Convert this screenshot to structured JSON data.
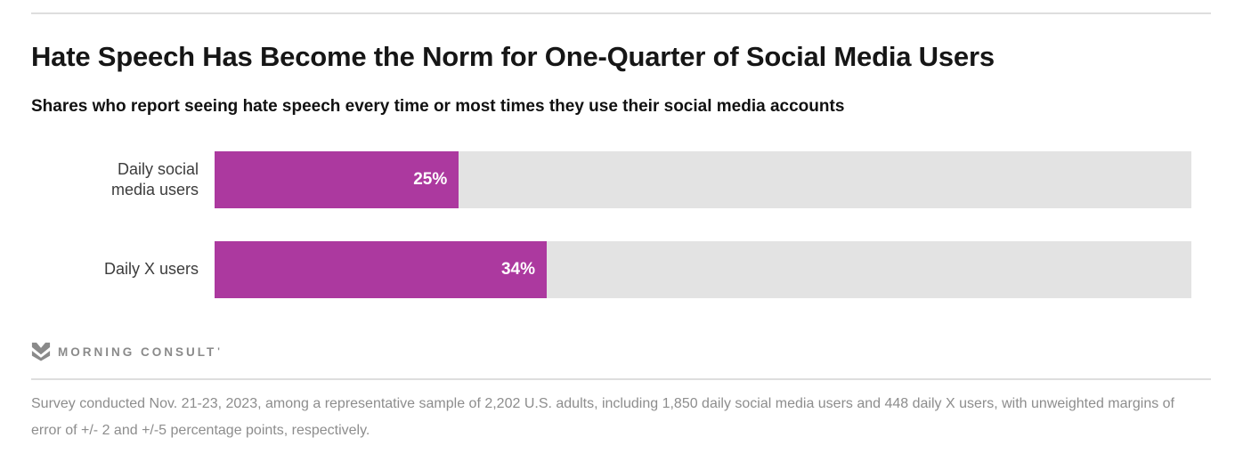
{
  "header": {
    "title": "Hate Speech Has Become the Norm for One-Quarter of Social Media Users",
    "subtitle": "Shares who report seeing hate speech every time or most times they use their social media accounts"
  },
  "chart_data": {
    "type": "bar",
    "orientation": "horizontal",
    "title": "Hate Speech Has Become the Norm for One-Quarter of Social Media Users",
    "subtitle": "Shares who report seeing hate speech every time or most times they use their social media accounts",
    "categories": [
      "Daily social media users",
      "Daily X users"
    ],
    "values": [
      25,
      34
    ],
    "value_labels": [
      "25%",
      "34%"
    ],
    "value_suffix": "%",
    "xlabel": "",
    "ylabel": "",
    "xlim": [
      0,
      100
    ],
    "grid": false,
    "legend": false,
    "bar_color": "#ac399f",
    "track_color": "#e3e3e3",
    "value_label_color": "#ffffff"
  },
  "branding": {
    "logo_text": "MORNING CONSULT",
    "logo_tick": "'",
    "logo_icon": "morning-consult-m-mark",
    "logo_color": "#8a8a8a"
  },
  "footer": {
    "note": "Survey conducted Nov. 21-23, 2023, among a representative sample of 2,202 U.S. adults, including 1,850 daily social media users and 448 daily X users, with unweighted margins of error of +/- 2 and +/-5 percentage points, respectively."
  },
  "colors": {
    "accent": "#ac399f",
    "track": "#e3e3e3",
    "divider": "#dedede",
    "title_text": "#161616",
    "label_text": "#3c3c3c",
    "footnote_text": "#8d8d8d"
  }
}
